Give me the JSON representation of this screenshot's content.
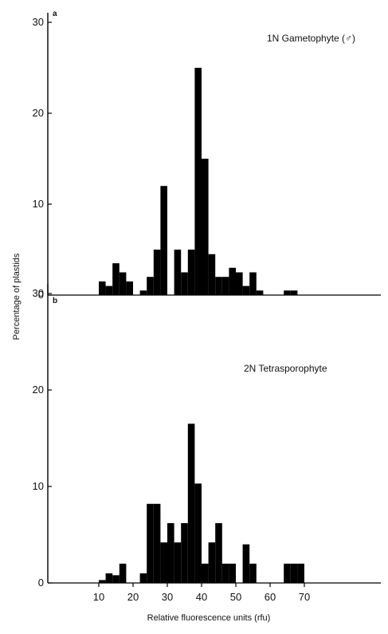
{
  "chart_data": [
    {
      "type": "bar",
      "panel_label": "a",
      "title": "1N Gametophyte (♂)",
      "xlabel": "Relative fluorescence units (rfu)",
      "ylabel": "Percentage of plastids",
      "xlim": [
        0,
        72
      ],
      "ylim": [
        0,
        30
      ],
      "yticks": [
        0,
        10,
        20,
        30
      ],
      "xticks": [
        10,
        20,
        30,
        40,
        50,
        60,
        70
      ],
      "bin_width": 2,
      "x": [
        11,
        13,
        15,
        17,
        19,
        23,
        25,
        27,
        29,
        33,
        35,
        37,
        39,
        41,
        43,
        45,
        47,
        49,
        51,
        53,
        55,
        57,
        65,
        67
      ],
      "values": [
        1.5,
        1,
        3.5,
        2.5,
        1.5,
        0.5,
        2,
        5,
        12,
        5,
        2.5,
        5,
        25,
        15,
        4.5,
        2,
        2,
        3,
        2.5,
        1,
        2.5,
        0.5,
        0.5,
        0.5
      ],
      "grid": false
    },
    {
      "type": "bar",
      "panel_label": "b",
      "title": "2N Tetrasporophyte",
      "xlabel": "Relative fluorescence units (rfu)",
      "ylabel": "Percentage of plastids",
      "xlim": [
        0,
        72
      ],
      "ylim": [
        0,
        30
      ],
      "yticks": [
        0,
        10,
        20,
        30
      ],
      "xticks": [
        10,
        20,
        30,
        40,
        50,
        60,
        70
      ],
      "bin_width": 2,
      "x": [
        11,
        13,
        15,
        17,
        23,
        25,
        27,
        29,
        31,
        33,
        35,
        37,
        39,
        41,
        43,
        45,
        47,
        49,
        53,
        55,
        65,
        67,
        69
      ],
      "values": [
        0.3,
        1,
        0.8,
        2,
        1,
        8.2,
        8.2,
        4.2,
        6.2,
        4.2,
        6.2,
        16.5,
        10.3,
        2,
        4.2,
        6.2,
        2,
        2,
        4,
        2,
        2,
        2,
        2
      ],
      "grid": false
    }
  ]
}
